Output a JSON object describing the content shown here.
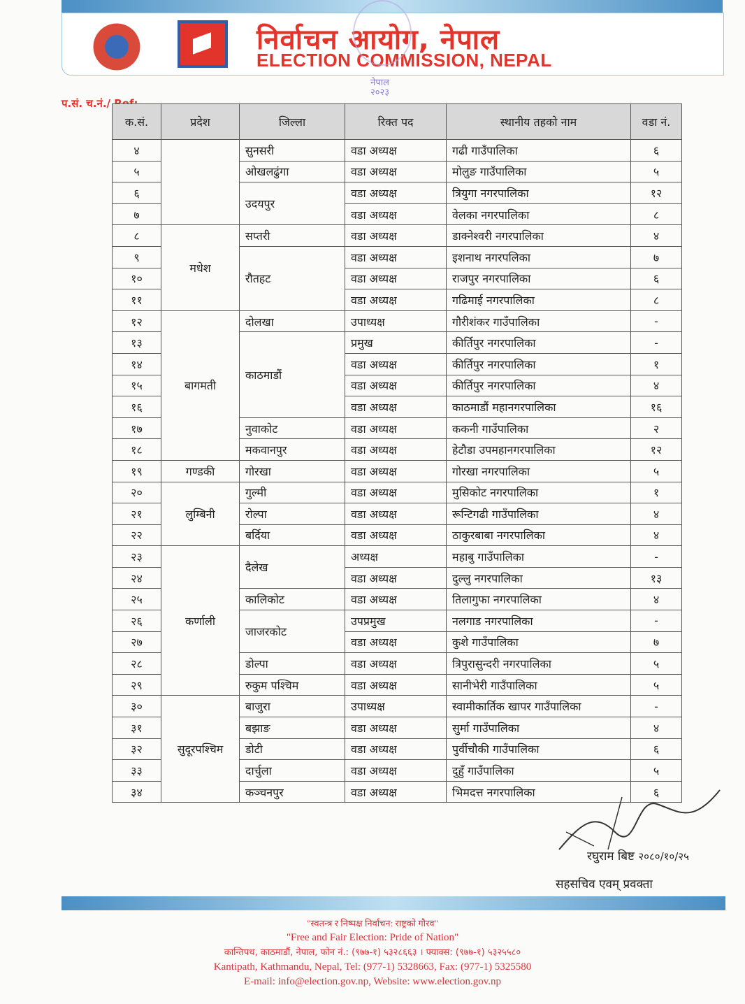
{
  "header": {
    "title_np": "निर्वाचन आयोग, नेपाल",
    "title_en": "ELECTION COMMISSION, NEPAL",
    "stamp_text": "नेपाल",
    "stamp_year": "२०२३"
  },
  "ref_label": "प.सं. च.नं./ Ref:",
  "table": {
    "headers": [
      "क.सं.",
      "प्रदेश",
      "जिल्ला",
      "रिक्त पद",
      "स्थानीय तहको नाम",
      "वडा नं."
    ],
    "provinces": [
      {
        "name": "",
        "span": 4
      },
      {
        "name": "मधेश",
        "span": 4
      },
      {
        "name": "बागमती",
        "span": 7
      },
      {
        "name": "गण्डकी",
        "span": 1
      },
      {
        "name": "लुम्बिनी",
        "span": 3
      },
      {
        "name": "कर्णाली",
        "span": 7
      },
      {
        "name": "सुदूरपश्चिम",
        "span": 5
      }
    ],
    "districts": [
      {
        "name": "सुनसरी",
        "span": 1
      },
      {
        "name": "ओखलढुंगा",
        "span": 1
      },
      {
        "name": "उदयपुर",
        "span": 2
      },
      {
        "name": "सप्तरी",
        "span": 1
      },
      {
        "name": "रौतहट",
        "span": 3
      },
      {
        "name": "दोलखा",
        "span": 1
      },
      {
        "name": "काठमाडौं",
        "span": 4
      },
      {
        "name": "नुवाकोट",
        "span": 1
      },
      {
        "name": "मकवानपुर",
        "span": 1
      },
      {
        "name": "गोरखा",
        "span": 1
      },
      {
        "name": "गुल्मी",
        "span": 1
      },
      {
        "name": "रोल्पा",
        "span": 1
      },
      {
        "name": "बर्दिया",
        "span": 1
      },
      {
        "name": "दैलेख",
        "span": 2
      },
      {
        "name": "कालिकोट",
        "span": 1
      },
      {
        "name": "जाजरकोट",
        "span": 2
      },
      {
        "name": "डोल्पा",
        "span": 1
      },
      {
        "name": "रुकुम पश्चिम",
        "span": 1
      },
      {
        "name": "बाजुरा",
        "span": 1
      },
      {
        "name": "बझाङ",
        "span": 1
      },
      {
        "name": "डोटी",
        "span": 1
      },
      {
        "name": "दार्चुला",
        "span": 1
      },
      {
        "name": "कञ्चनपुर",
        "span": 1
      }
    ],
    "rows": [
      [
        "४",
        "वडा अध्यक्ष",
        "गढी गाउँपालिका",
        "६"
      ],
      [
        "५",
        "वडा अध्यक्ष",
        "मोलुङ गाउँपालिका",
        "५"
      ],
      [
        "६",
        "वडा अध्यक्ष",
        "त्रियुगा नगरपालिका",
        "१२"
      ],
      [
        "७",
        "वडा अध्यक्ष",
        "वेलका नगरपालिका",
        "८"
      ],
      [
        "८",
        "वडा अध्यक्ष",
        "डाक्नेश्वरी नगरपालिका",
        "४"
      ],
      [
        "९",
        "वडा अध्यक्ष",
        "इशनाथ नगरपलिका",
        "७"
      ],
      [
        "१०",
        "वडा अध्यक्ष",
        "राजपुर नगरपालिका",
        "६"
      ],
      [
        "११",
        "वडा अध्यक्ष",
        "गढिमाई नगरपालिका",
        "८"
      ],
      [
        "१२",
        "उपाध्यक्ष",
        "गौरीशंकर गाउँपालिका",
        "-"
      ],
      [
        "१३",
        "प्रमुख",
        "कीर्तिपुर नगरपालिका",
        "-"
      ],
      [
        "१४",
        "वडा अध्यक्ष",
        "कीर्तिपुर नगरपालिका",
        "१"
      ],
      [
        "१५",
        "वडा अध्यक्ष",
        "कीर्तिपुर नगरपालिका",
        "४"
      ],
      [
        "१६",
        "वडा अध्यक्ष",
        "काठमाडौं महानगरपालिका",
        "१६"
      ],
      [
        "१७",
        "वडा अध्यक्ष",
        "ककनी गाउँपालिका",
        "२"
      ],
      [
        "१८",
        "वडा अध्यक्ष",
        "हेटौडा उपमहानगरपालिका",
        "१२"
      ],
      [
        "१९",
        "वडा अध्यक्ष",
        "गोरखा नगरपालिका",
        "५"
      ],
      [
        "२०",
        "वडा अध्यक्ष",
        "मुसिकोट नगरपालिका",
        "१"
      ],
      [
        "२१",
        "वडा अध्यक्ष",
        "रून्टिगढी गाउँपालिका",
        "४"
      ],
      [
        "२२",
        "वडा अध्यक्ष",
        "ठाकुरबाबा नगरपालिका",
        "४"
      ],
      [
        "२३",
        "अध्यक्ष",
        "महाबु गाउँपालिका",
        "-"
      ],
      [
        "२४",
        "वडा अध्यक्ष",
        "दुल्लु नगरपालिका",
        "१३"
      ],
      [
        "२५",
        "वडा अध्यक्ष",
        "तिलागुफा नगरपालिका",
        "४"
      ],
      [
        "२६",
        "उपप्रमुख",
        "नलगाड नगरपालिका",
        "-"
      ],
      [
        "२७",
        "वडा अध्यक्ष",
        "कुशे गाउँपालिका",
        "७"
      ],
      [
        "२८",
        "वडा अध्यक्ष",
        "त्रिपुरासुन्दरी नगरपालिका",
        "५"
      ],
      [
        "२९",
        "वडा अध्यक्ष",
        "सानीभेरी गाउँपालिका",
        "५"
      ],
      [
        "३०",
        "उपाध्यक्ष",
        "स्वामीकार्तिक खापर गाउँपालिका",
        "-"
      ],
      [
        "३१",
        "वडा अध्यक्ष",
        "सुर्मा गाउँपालिका",
        "४"
      ],
      [
        "३२",
        "वडा अध्यक्ष",
        "पुर्वीचौकी गाउँपालिका",
        "६"
      ],
      [
        "३३",
        "वडा अध्यक्ष",
        "दुहुँ गाउँपालिका",
        "५"
      ],
      [
        "३४",
        "वडा अध्यक्ष",
        "भिमदत्त नगरपालिका",
        "६"
      ]
    ]
  },
  "signature": {
    "name": "रघुराम बिष्ट",
    "date": "२०८०/१०/२५",
    "title": "सहसचिव एवम् प्रवक्ता"
  },
  "footer": {
    "motto_np": "\"स्वतन्त्र र निष्पक्ष निर्वाचन: राष्ट्रको गौरव\"",
    "motto_en": "\"Free and Fair Election: Pride of Nation\"",
    "address_np": "कान्तिपथ, काठमाडौं, नेपाल, फोन नं.: (९७७-१) ५३२८६६३ । फ्याक्स: (९७७-१) ५३२५५८०",
    "address_en": "Kantipath, Kathmandu, Nepal, Tel: (977-1) 5328663, Fax: (977-1) 5325580",
    "contact": "E-mail: info@election.gov.np, Website: www.election.gov.np"
  }
}
